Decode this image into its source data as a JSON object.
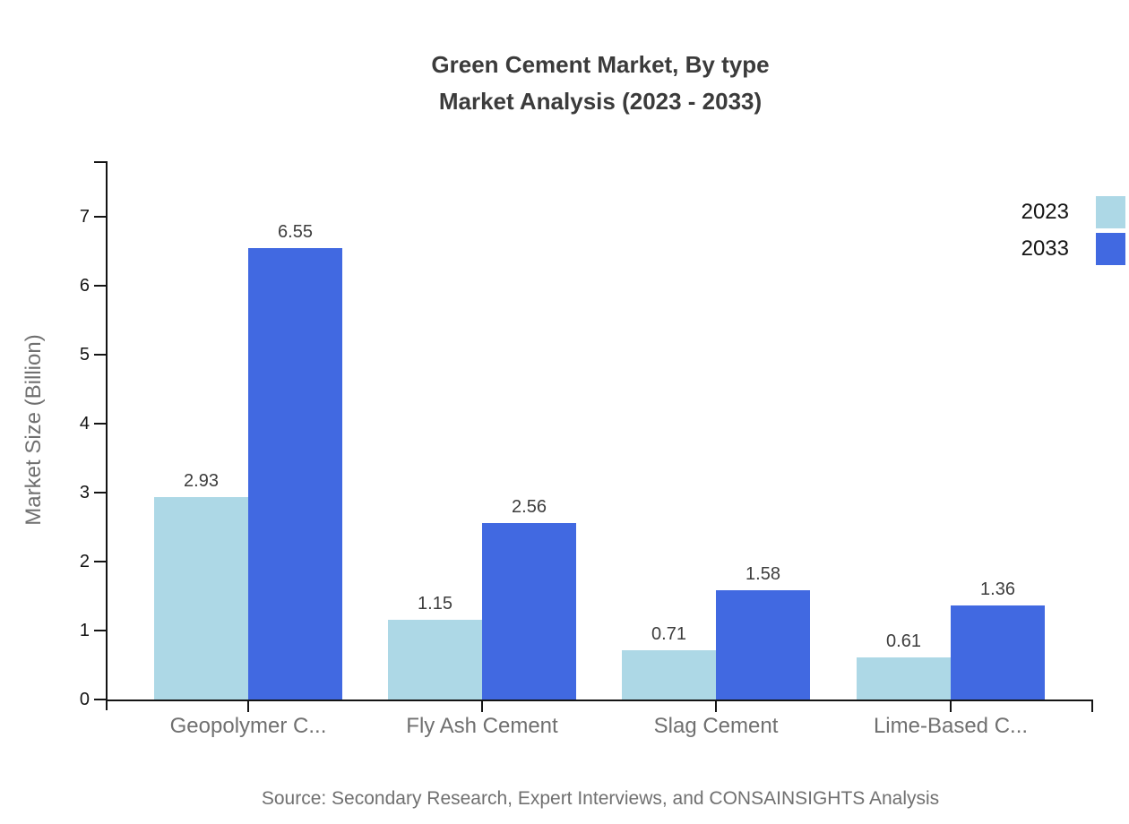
{
  "title": {
    "line1": "Green Cement Market, By type",
    "line2": "Market Analysis (2023 - 2033)"
  },
  "footer": {
    "source": "Source: Secondary Research, Expert Interviews, and CONSAINSIGHTS Analysis"
  },
  "chart_data": {
    "type": "bar",
    "title": "Green Cement Market, By type Market Analysis (2023 - 2033)",
    "categories": [
      "Geopolymer C...",
      "Fly Ash Cement",
      "Slag Cement",
      "Lime-Based C..."
    ],
    "series": [
      {
        "name": "2023",
        "color": "#ADD8E6",
        "values": [
          2.93,
          1.15,
          0.71,
          0.61
        ]
      },
      {
        "name": "2033",
        "color": "#4169E1",
        "values": [
          6.55,
          2.56,
          1.58,
          1.36
        ]
      }
    ],
    "xlabel": "",
    "ylabel": "Market Size (Billion)",
    "yticks": [
      0,
      1,
      2,
      3,
      4,
      5,
      6,
      7
    ],
    "ylim": [
      0,
      7.8
    ],
    "grid": false,
    "legend_position": "top-right",
    "value_labels": true,
    "axis_color": "#141414",
    "text_color": "#707070"
  }
}
